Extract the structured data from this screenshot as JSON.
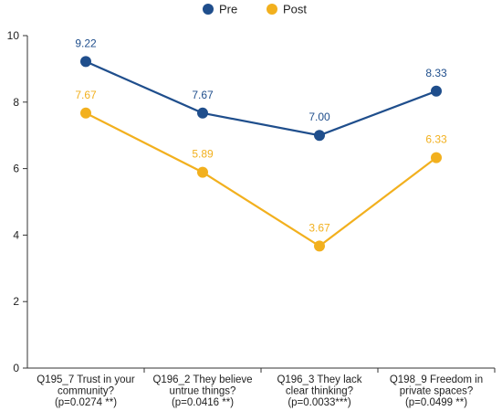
{
  "chart_data": {
    "type": "line",
    "title": "",
    "xlabel": "",
    "ylabel": "",
    "ylim": [
      0,
      10
    ],
    "yticks": [
      0,
      2,
      4,
      6,
      8,
      10
    ],
    "grid": false,
    "legend_position": "top-center",
    "categories": [
      [
        "Q195_7 Trust in your",
        "community?",
        "(p=0.0274 **)"
      ],
      [
        "Q196_2 They believe",
        "untrue things?",
        "(p=0.0416 **)"
      ],
      [
        "Q196_3 They lack",
        "clear thinking?",
        "(p=0.0033***)"
      ],
      [
        "Q198_9 Freedom in",
        "private spaces?",
        "(p=0.0499 **)"
      ]
    ],
    "series": [
      {
        "name": "Pre",
        "color": "#1f4e8c",
        "values": [
          9.22,
          7.67,
          7.0,
          8.33
        ],
        "labels": [
          "9.22",
          "7.67",
          "7.00",
          "8.33"
        ]
      },
      {
        "name": "Post",
        "color": "#f2b01e",
        "values": [
          7.67,
          5.89,
          3.67,
          6.33
        ],
        "labels": [
          "7.67",
          "5.89",
          "3.67",
          "6.33"
        ]
      }
    ]
  }
}
